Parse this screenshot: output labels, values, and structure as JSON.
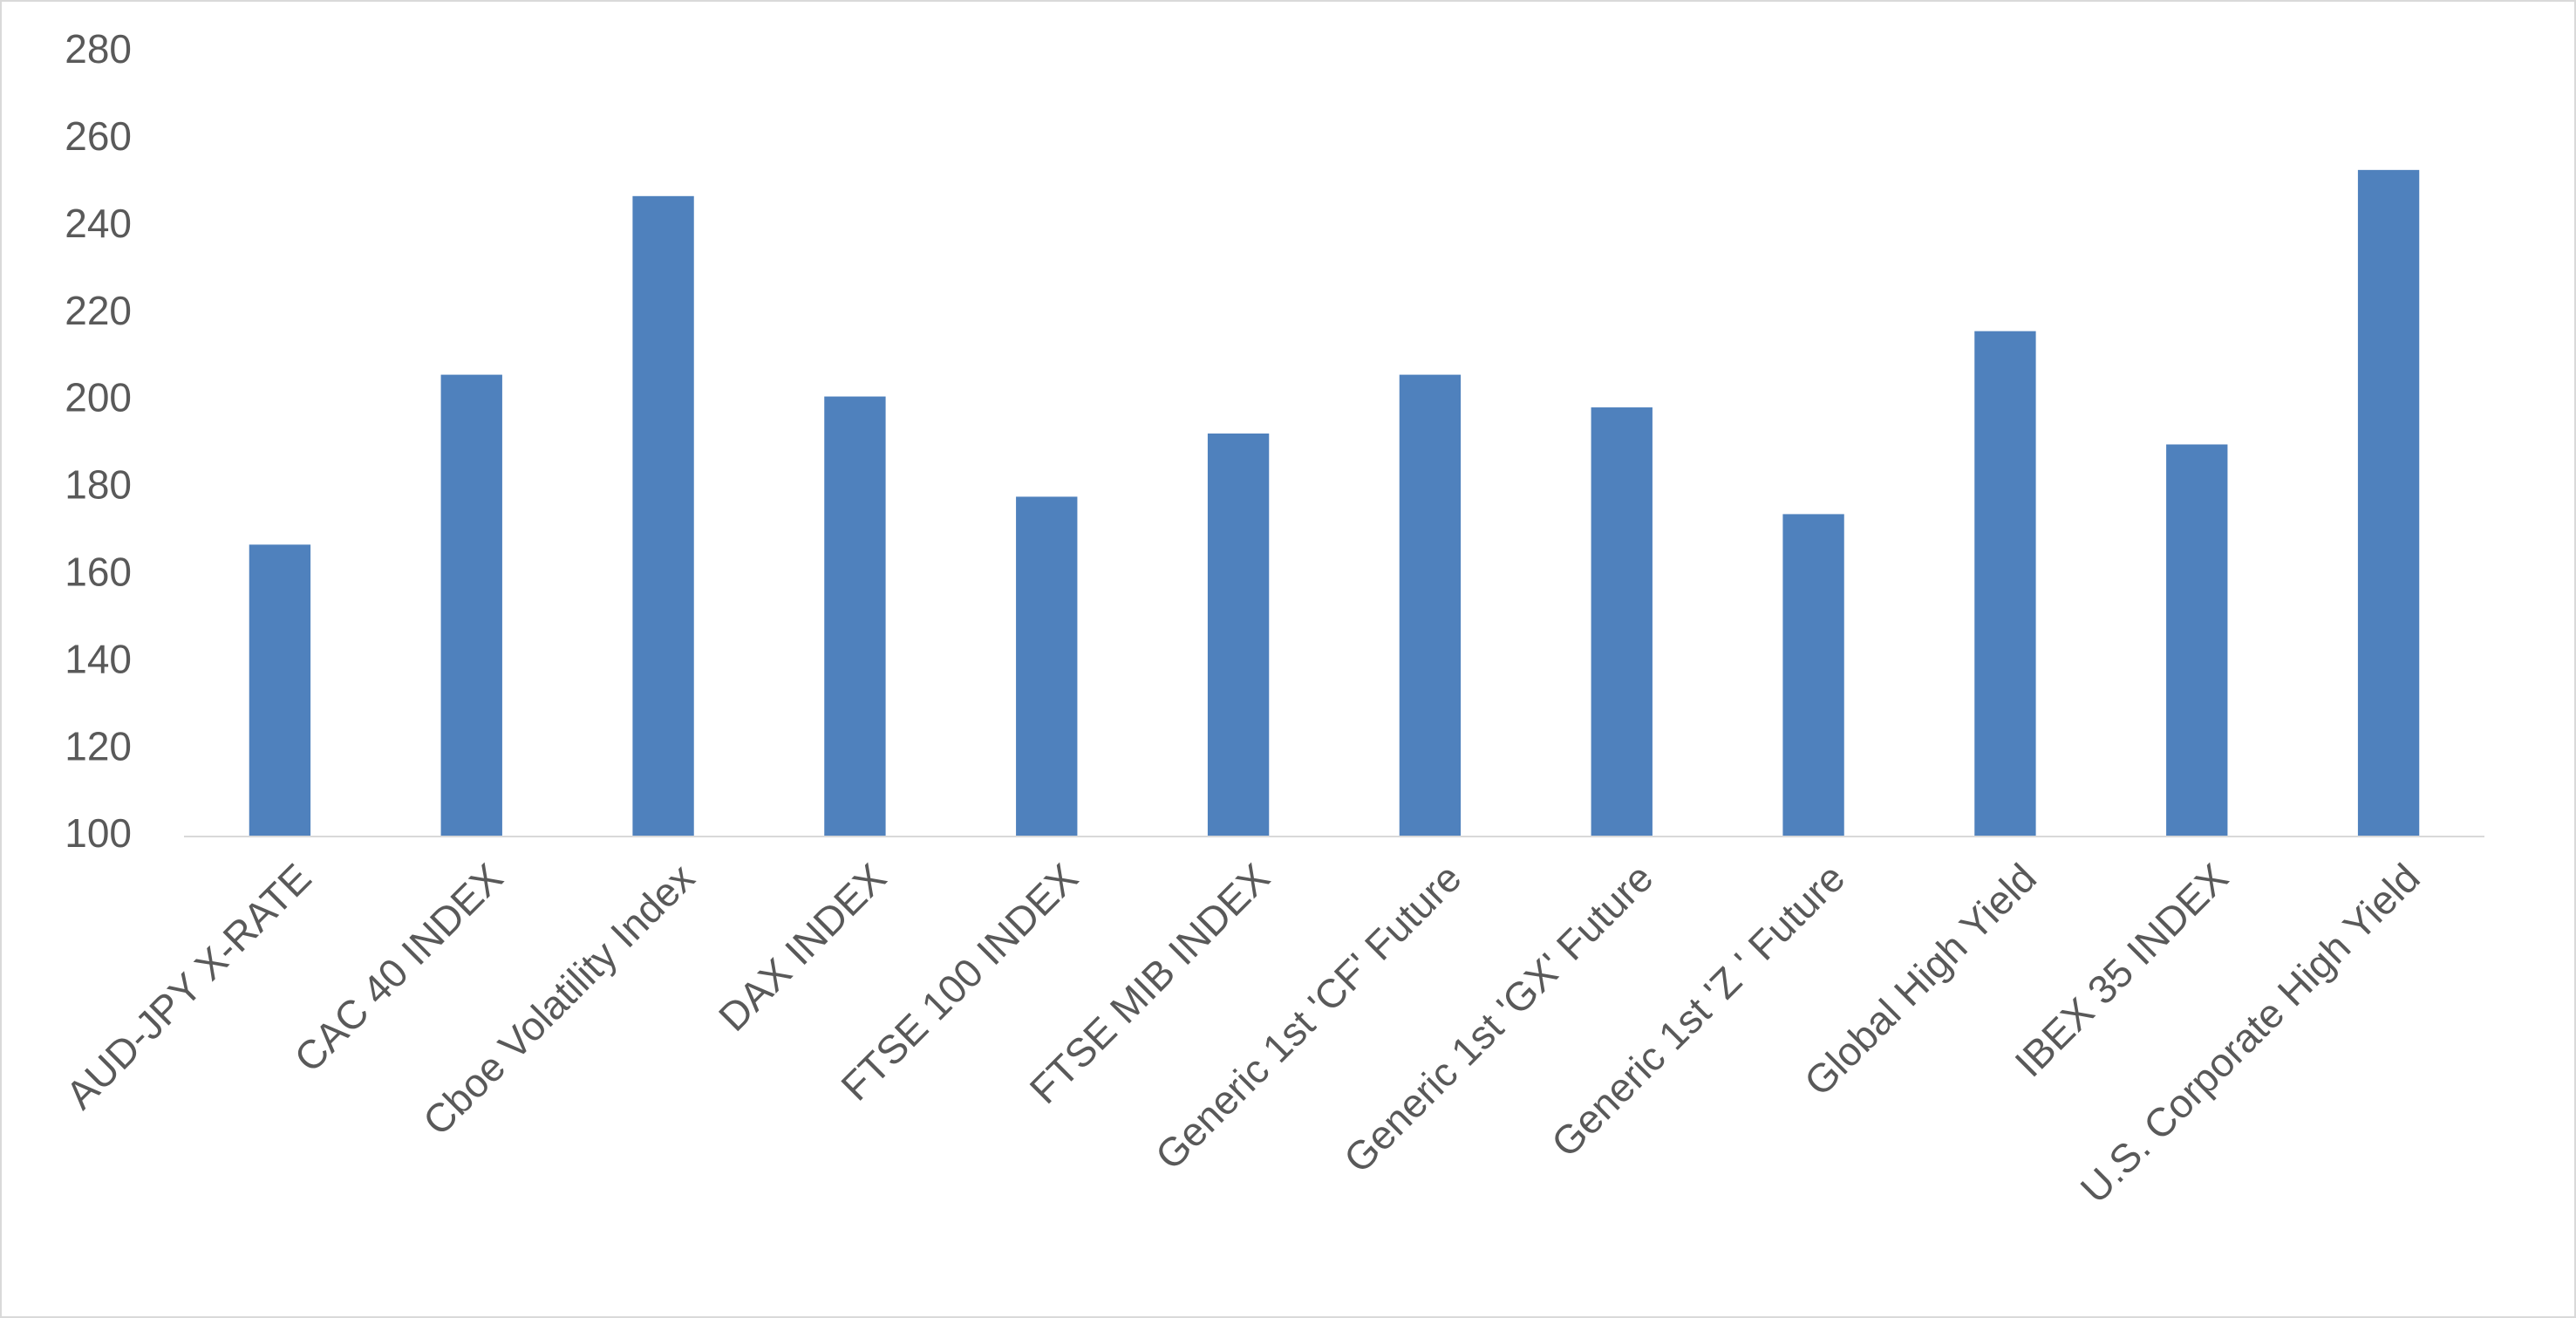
{
  "chart_data": {
    "type": "bar",
    "categories": [
      "AUD-JPY X-RATE",
      "CAC 40 INDEX",
      "Cboe Volatility Index",
      "DAX INDEX",
      "FTSE 100 INDEX",
      "FTSE MIB INDEX",
      "Generic 1st 'CF' Future",
      "Generic 1st 'GX' Future",
      "Generic 1st 'Z ' Future",
      "Global High Yield",
      "IBEX 35 INDEX",
      "U.S. Corporate High Yield"
    ],
    "values": [
      167,
      206,
      247,
      201,
      178,
      192.5,
      206,
      198.5,
      174,
      216,
      190,
      253
    ],
    "color": "#4f81bd",
    "ylim": [
      100,
      280
    ],
    "yticks": [
      100,
      120,
      140,
      160,
      180,
      200,
      220,
      240,
      260,
      280
    ],
    "grid": false
  }
}
